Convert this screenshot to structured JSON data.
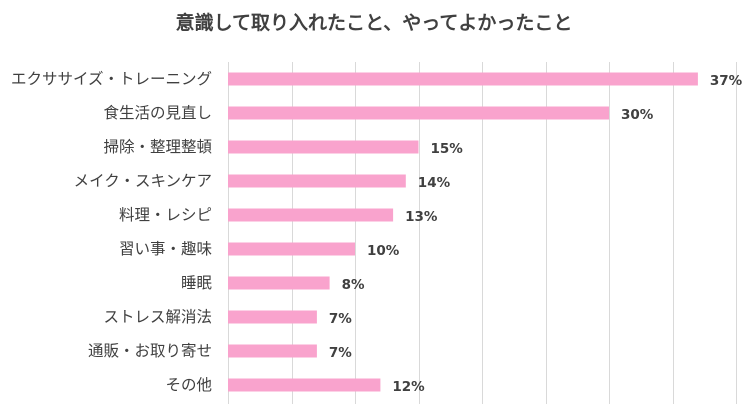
{
  "chart_data": {
    "type": "bar",
    "orientation": "horizontal",
    "title": "意識して取り入れたこと、やってよかったこと",
    "xlabel": "",
    "ylabel": "",
    "categories": [
      "エクササイズ・トレーニング",
      "食生活の見直し",
      "掃除・整理整頓",
      "メイク・スキンケア",
      "料理・レシピ",
      "習い事・趣味",
      "睡眠",
      "ストレス解消法",
      "通販・お取り寄せ",
      "その他"
    ],
    "values": [
      37,
      30,
      15,
      14,
      13,
      10,
      8,
      7,
      7,
      12
    ],
    "value_labels": [
      "37%",
      "30%",
      "15%",
      "14%",
      "13%",
      "10%",
      "8%",
      "7%",
      "7%",
      "12%"
    ],
    "xlim": [
      0,
      40
    ],
    "grid": true,
    "legend": "none",
    "bar_color": "#f9a3cd"
  }
}
